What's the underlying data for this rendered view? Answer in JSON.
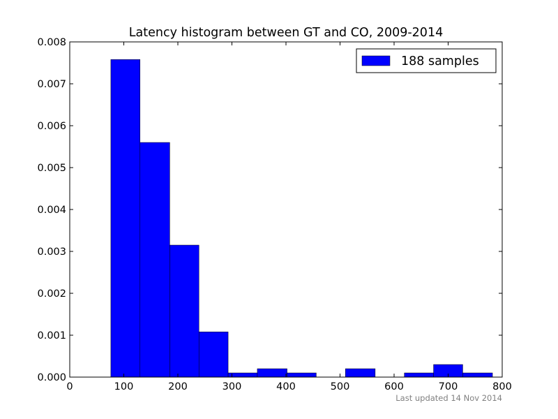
{
  "chart_data": {
    "type": "bar",
    "title": "Latency histogram between GT and CO, 2009-2014",
    "xlabel": "",
    "ylabel": "",
    "xlim": [
      0,
      800
    ],
    "ylim": [
      0,
      0.008
    ],
    "x_ticks": [
      0,
      100,
      200,
      300,
      400,
      500,
      600,
      700,
      800
    ],
    "x_tick_labels": [
      "0",
      "100",
      "200",
      "300",
      "400",
      "500",
      "600",
      "700",
      "800"
    ],
    "y_ticks": [
      0,
      0.001,
      0.002,
      0.003,
      0.004,
      0.005,
      0.006,
      0.007,
      0.008
    ],
    "y_tick_labels": [
      "0.000",
      "0.001",
      "0.002",
      "0.003",
      "0.004",
      "0.005",
      "0.006",
      "0.007",
      "0.008"
    ],
    "grid": false,
    "legend_position": "top-right",
    "series": [
      {
        "name": "188 samples",
        "color": "#0000ff",
        "bins": [
          {
            "x0": 76,
            "x1": 130,
            "value": 0.00758
          },
          {
            "x0": 130,
            "x1": 185,
            "value": 0.0056
          },
          {
            "x0": 185,
            "x1": 239,
            "value": 0.00315
          },
          {
            "x0": 239,
            "x1": 293,
            "value": 0.00108
          },
          {
            "x0": 293,
            "x1": 347,
            "value": 0.0001
          },
          {
            "x0": 347,
            "x1": 402,
            "value": 0.0002
          },
          {
            "x0": 402,
            "x1": 456,
            "value": 0.0001
          },
          {
            "x0": 456,
            "x1": 510,
            "value": 0.0
          },
          {
            "x0": 510,
            "x1": 565,
            "value": 0.0002
          },
          {
            "x0": 565,
            "x1": 619,
            "value": 0.0
          },
          {
            "x0": 619,
            "x1": 673,
            "value": 0.0001
          },
          {
            "x0": 673,
            "x1": 727,
            "value": 0.0003
          },
          {
            "x0": 727,
            "x1": 782,
            "value": 0.0001
          }
        ]
      }
    ]
  },
  "footnote": "Last updated 14 Nov 2014"
}
